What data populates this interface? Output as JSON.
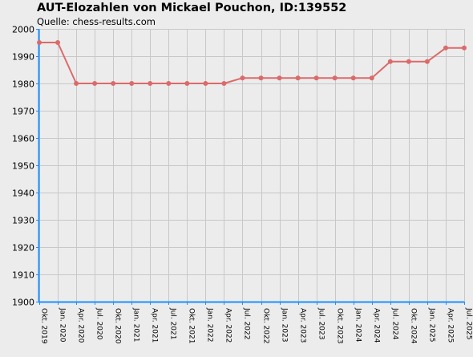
{
  "header": {
    "title": "AUT-Elozahlen von Mickael Pouchon, ID:139552",
    "source": "Quelle: chess-results.com"
  },
  "colors": {
    "background": "#ececec",
    "grid": "#c8c8c8",
    "axis": "#1e90ff",
    "series": "#dc6a6a"
  },
  "chart_data": {
    "type": "line",
    "title": "AUT-Elozahlen von Mickael Pouchon, ID:139552",
    "subtitle": "Quelle: chess-results.com",
    "xlabel": "",
    "ylabel": "",
    "ylim": [
      1900,
      2000
    ],
    "yticks": [
      1900,
      1910,
      1920,
      1930,
      1940,
      1950,
      1960,
      1970,
      1980,
      1990,
      2000
    ],
    "grid": true,
    "legend": "none",
    "categories": [
      "Okt. 2019",
      "Jan. 2020",
      "Apr. 2020",
      "Jul. 2020",
      "Okt. 2020",
      "Jan. 2021",
      "Apr. 2021",
      "Jul. 2021",
      "Okt. 2021",
      "Jan. 2022",
      "Apr. 2022",
      "Jul. 2022",
      "Okt. 2022",
      "Jan. 2023",
      "Apr. 2023",
      "Jul. 2023",
      "Okt. 2023",
      "Jan. 2024",
      "Apr. 2024",
      "Jul. 2024",
      "Okt. 2024",
      "Jan. 2025",
      "Apr. 2025",
      "Jul. 2025"
    ],
    "series": [
      {
        "values": [
          1995,
          1995,
          1980,
          1980,
          1980,
          1980,
          1980,
          1980,
          1980,
          1980,
          1980,
          1982,
          1982,
          1982,
          1982,
          1982,
          1982,
          1982,
          1982,
          1988,
          1988,
          1988,
          1993,
          1993
        ]
      }
    ]
  }
}
